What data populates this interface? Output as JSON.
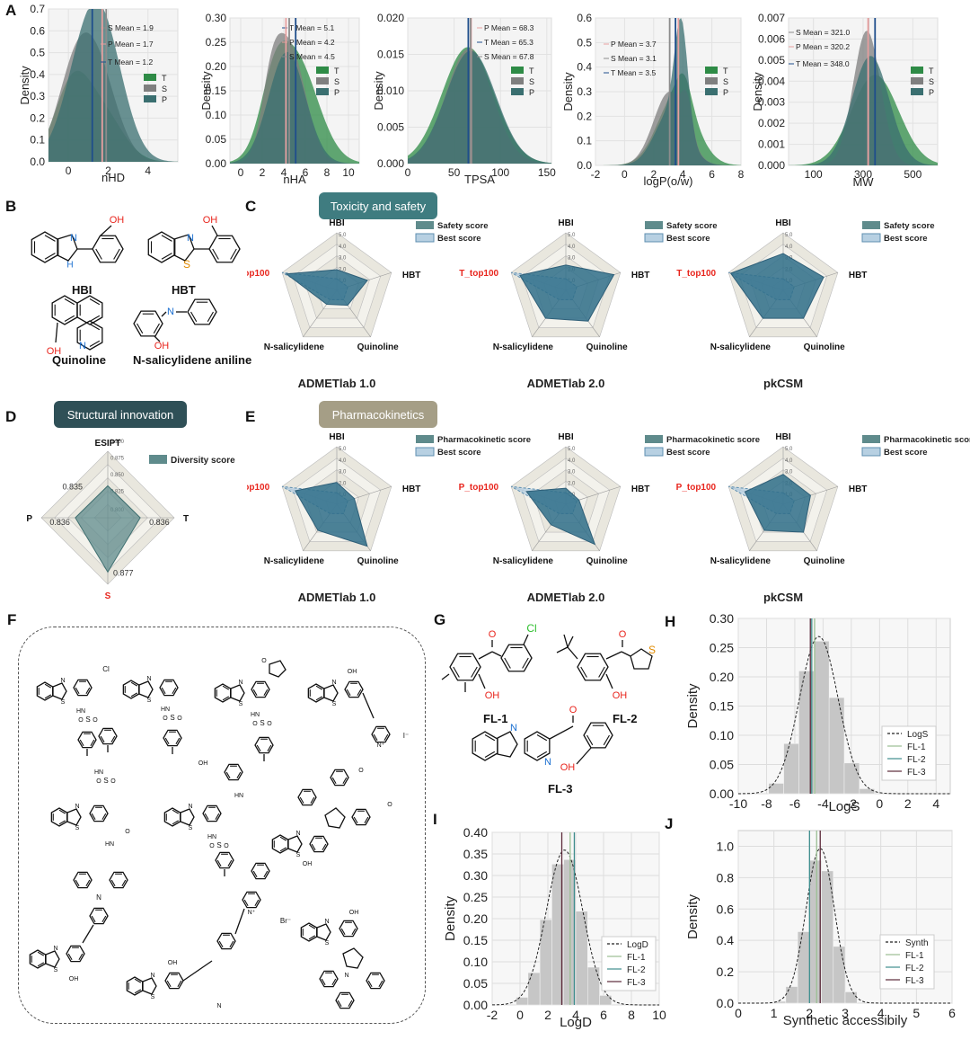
{
  "panel_labels": {
    "A": "A",
    "B": "B",
    "C": "C",
    "D": "D",
    "E": "E",
    "F": "F",
    "G": "G",
    "H": "H",
    "I": "I",
    "J": "J"
  },
  "colors": {
    "T": "#2e8b57",
    "S": "#8c8c8c",
    "P": "#3d7a7a",
    "radar_fill": "#2e6f8a",
    "best_fill": "#a9c8dc",
    "red": "#e8251d",
    "hist": "#c8c8c8",
    "fl1": "#9bbf93",
    "fl2": "#3f8e8e",
    "fl3": "#5c2a3a",
    "sect_dark": "#2f5d66",
    "sect_teal": "#3f7c80",
    "sect_tan": "#a59e86"
  },
  "section_titles": {
    "toxicity": "Toxicity and safety",
    "structural": "Structural innovation",
    "pharma": "Pharmacokinetics"
  },
  "chart_data": [
    {
      "id": "A1",
      "type": "area",
      "xlabel": "nHD",
      "ylabel": "Density",
      "xlim": [
        -1,
        5.5
      ],
      "ylim": [
        0,
        0.7
      ],
      "xticks": [
        0,
        2,
        4
      ],
      "yticks": [
        0.0,
        0.1,
        0.2,
        0.3,
        0.4,
        0.5,
        0.6,
        0.7
      ],
      "legend": [
        "T",
        "S",
        "P"
      ],
      "means": [
        {
          "label": "S Mean = 1.9",
          "x": 1.9,
          "color": "#8c8c8c"
        },
        {
          "label": "P Mean = 1.7",
          "x": 1.7,
          "color": "#e8a0a0"
        },
        {
          "label": "T Mean = 1.2",
          "x": 1.2,
          "color": "#1f4e8c"
        }
      ]
    },
    {
      "id": "A2",
      "type": "area",
      "xlabel": "nHA",
      "ylabel": "Density",
      "xlim": [
        -1,
        11
      ],
      "ylim": [
        0,
        0.3
      ],
      "xticks": [
        0,
        2,
        4,
        6,
        8,
        10
      ],
      "yticks": [
        0.0,
        0.05,
        0.1,
        0.15,
        0.2,
        0.25,
        0.3
      ],
      "legend": [
        "T",
        "S",
        "P"
      ],
      "means": [
        {
          "label": "T Mean = 5.1",
          "x": 5.1,
          "color": "#1f4e8c"
        },
        {
          "label": "P Mean = 4.2",
          "x": 4.2,
          "color": "#e8a0a0"
        },
        {
          "label": "S Mean = 4.5",
          "x": 4.5,
          "color": "#8c8c8c"
        }
      ]
    },
    {
      "id": "A3",
      "type": "area",
      "xlabel": "TPSA",
      "ylabel": "Density",
      "xlim": [
        0,
        155
      ],
      "ylim": [
        0,
        0.02
      ],
      "xticks": [
        0,
        50,
        100,
        150
      ],
      "yticks": [
        0.0,
        0.005,
        0.01,
        0.015,
        0.02
      ],
      "legend": [
        "T",
        "S",
        "P"
      ],
      "means": [
        {
          "label": "P Mean = 68.3",
          "x": 68.3,
          "color": "#e8a0a0"
        },
        {
          "label": "T Mean = 65.3",
          "x": 65.3,
          "color": "#1f4e8c"
        },
        {
          "label": "S Mean = 67.8",
          "x": 67.8,
          "color": "#8c8c8c"
        }
      ]
    },
    {
      "id": "A4",
      "type": "area",
      "xlabel": "logP(o/w)",
      "ylabel": "Density",
      "xlim": [
        -2,
        8
      ],
      "ylim": [
        0,
        0.6
      ],
      "xticks": [
        -2,
        0,
        2,
        4,
        6,
        8
      ],
      "yticks": [
        0.0,
        0.1,
        0.2,
        0.3,
        0.4,
        0.5,
        0.6
      ],
      "legend": [
        "T",
        "S",
        "P"
      ],
      "means": [
        {
          "label": "P Mean = 3.7",
          "x": 3.7,
          "color": "#e8a0a0"
        },
        {
          "label": "S Mean = 3.1",
          "x": 3.1,
          "color": "#8c8c8c"
        },
        {
          "label": "T Mean = 3.5",
          "x": 3.5,
          "color": "#1f4e8c"
        }
      ]
    },
    {
      "id": "A5",
      "type": "area",
      "xlabel": "MW",
      "ylabel": "Density",
      "xlim": [
        0,
        600
      ],
      "ylim": [
        0,
        0.007
      ],
      "xticks": [
        100,
        300,
        500
      ],
      "yticks": [
        0.0,
        0.001,
        0.002,
        0.003,
        0.004,
        0.005,
        0.006,
        0.007
      ],
      "legend": [
        "T",
        "S",
        "P"
      ],
      "means": [
        {
          "label": "S Mean = 321.0",
          "x": 321.0,
          "color": "#8c8c8c"
        },
        {
          "label": "P Mean = 320.2",
          "x": 320.2,
          "color": "#e8a0a0"
        },
        {
          "label": "T Mean = 348.0",
          "x": 348.0,
          "color": "#1f4e8c"
        }
      ]
    },
    {
      "id": "H",
      "type": "bar",
      "xlabel": "LogS",
      "ylabel": "Density",
      "xlim": [
        -10,
        5
      ],
      "ylim": [
        0,
        0.3
      ],
      "xticks": [
        -10,
        -8,
        -6,
        -4,
        -2,
        0,
        2,
        4
      ],
      "yticks": [
        0.0,
        0.05,
        0.1,
        0.15,
        0.2,
        0.25,
        0.3
      ],
      "legend": [
        "LogS",
        "FL-1",
        "FL-2",
        "FL-3"
      ],
      "markers": [
        -4.6,
        -4.8,
        -4.9
      ]
    },
    {
      "id": "I",
      "type": "bar",
      "xlabel": "LogD",
      "ylabel": "Density",
      "xlim": [
        -2,
        10
      ],
      "ylim": [
        0,
        0.4
      ],
      "xticks": [
        -2,
        0,
        2,
        4,
        6,
        8,
        10
      ],
      "yticks": [
        0.0,
        0.05,
        0.1,
        0.15,
        0.2,
        0.25,
        0.3,
        0.35,
        0.4
      ],
      "legend": [
        "LogD",
        "FL-1",
        "FL-2",
        "FL-3"
      ],
      "markers": [
        3.6,
        3.9,
        3.0
      ]
    },
    {
      "id": "J",
      "type": "bar",
      "xlabel": "Synthetic accessibily",
      "ylabel": "Density",
      "xlim": [
        0,
        6
      ],
      "ylim": [
        0,
        1.1
      ],
      "xticks": [
        0,
        1,
        2,
        3,
        4,
        5,
        6
      ],
      "yticks": [
        0.0,
        0.2,
        0.4,
        0.6,
        0.8,
        1.0
      ],
      "legend": [
        "Synth",
        "FL-1",
        "FL-2",
        "FL-3"
      ],
      "markers": [
        2.2,
        2.0,
        2.3
      ]
    },
    {
      "id": "C",
      "type": "radar",
      "axes": [
        "HBI",
        "HBT",
        "Quinoline",
        "N-salicylidene",
        "T_top100"
      ],
      "rticks": [
        "1.0",
        "2.0",
        "3.0",
        "4.0",
        "5.0"
      ],
      "legend": [
        "Safety score",
        "Best score"
      ],
      "titles": [
        "ADMETlab 1.0",
        "ADMETlab 2.0",
        "pkCSM"
      ],
      "series": [
        [
          1.8,
          2.8,
          1.6,
          1.5,
          4.6
        ],
        [
          2.2,
          4.4,
          3.3,
          3.0,
          4.2
        ],
        [
          3.2,
          3.7,
          3.0,
          3.0,
          4.8
        ]
      ]
    },
    {
      "id": "E",
      "type": "radar",
      "axes": [
        "HBI",
        "HBT",
        "Quinoline",
        "N-salicylidene",
        "P_top100"
      ],
      "rticks": [
        "1.0",
        "2.0",
        "3.0",
        "4.0",
        "5.0"
      ],
      "legend": [
        "Pharmacokinetic score",
        "Best score"
      ],
      "titles": [
        "ADMETlab 1.0",
        "ADMETlab 2.0",
        "pkCSM"
      ],
      "series": [
        [
          1.9,
          1.6,
          4.5,
          2.8,
          3.8
        ],
        [
          1.4,
          1.2,
          4.3,
          2.2,
          3.6
        ],
        [
          2.6,
          2.5,
          3.0,
          2.8,
          3.5
        ]
      ]
    },
    {
      "id": "D",
      "type": "radar",
      "axes": [
        "ESIPT",
        "T",
        "S",
        "P"
      ],
      "legend": [
        "Diversity score"
      ],
      "rticks": [
        "0.800",
        "0.825",
        "0.850",
        "0.875",
        "0.900"
      ],
      "values": [
        0.835,
        0.836,
        0.877,
        0.836
      ],
      "value_labels": [
        "0.835",
        "0.836",
        "0.877",
        "0.836"
      ]
    }
  ],
  "molecules_B": [
    "HBI",
    "HBT",
    "Quinoline",
    "N-salicylidene aniline"
  ],
  "molecules_G": [
    "FL-1",
    "FL-2",
    "FL-3"
  ],
  "atoms": {
    "OH": "OH",
    "N": "N",
    "NH": "H",
    "S": "S",
    "O": "O",
    "Cl": "Cl",
    "HN": "HN",
    "Br": "Br⁻",
    "I": "I⁻",
    "Nplus": "N⁺"
  }
}
